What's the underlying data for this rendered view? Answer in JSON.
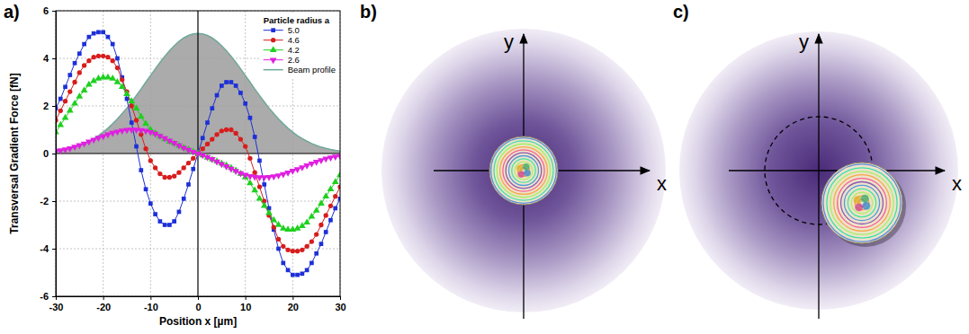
{
  "chart_data": {
    "type": "line",
    "panel_label": "a)",
    "x_label": "Position x [µm]",
    "y_label": "Transversal Gradient Force [fN]",
    "legend_title": "Particle radius a",
    "legend": "top-right",
    "grid": true,
    "xlim": [
      -30,
      30
    ],
    "xticks": [
      -30,
      -20,
      -10,
      0,
      10,
      20,
      30
    ],
    "ylim": [
      -6,
      6
    ],
    "yticks": [
      -6,
      -4,
      -2,
      0,
      2,
      4,
      6
    ],
    "x": [
      -30,
      -29,
      -28,
      -27,
      -26,
      -25,
      -24,
      -23,
      -22,
      -21,
      -20,
      -19,
      -18,
      -17,
      -16,
      -15,
      -14,
      -13,
      -12,
      -11,
      -10,
      -9,
      -8,
      -7,
      -6,
      -5,
      -4,
      -3,
      -2,
      -1,
      0,
      1,
      2,
      3,
      4,
      5,
      6,
      7,
      8,
      9,
      10,
      11,
      12,
      13,
      14,
      15,
      16,
      17,
      18,
      19,
      20,
      21,
      22,
      23,
      24,
      25,
      26,
      27,
      28,
      29,
      30
    ],
    "series": [
      {
        "name": "5.0",
        "color": "#1c2fd8",
        "marker": "square",
        "values": [
          1.9,
          2.3,
          2.8,
          3.3,
          3.8,
          4.2,
          4.6,
          4.9,
          5.05,
          5.1,
          5.1,
          4.9,
          4.6,
          4.0,
          3.2,
          2.3,
          1.3,
          0.3,
          -0.7,
          -1.5,
          -2.1,
          -2.55,
          -2.85,
          -3.0,
          -3.0,
          -2.85,
          -2.45,
          -1.9,
          -1.3,
          -0.65,
          0,
          0.65,
          1.3,
          1.9,
          2.45,
          2.85,
          3.0,
          3.0,
          2.85,
          2.55,
          2.1,
          1.5,
          0.7,
          -0.3,
          -1.3,
          -2.3,
          -3.2,
          -4.0,
          -4.6,
          -4.9,
          -5.1,
          -5.1,
          -5.05,
          -4.9,
          -4.6,
          -4.2,
          -3.8,
          -3.3,
          -2.8,
          -2.3,
          -1.9
        ]
      },
      {
        "name": "4.6",
        "color": "#d81c1c",
        "marker": "circle",
        "values": [
          1.4,
          1.8,
          2.2,
          2.6,
          3.0,
          3.4,
          3.7,
          3.9,
          4.05,
          4.1,
          4.1,
          4.05,
          3.9,
          3.6,
          3.1,
          2.6,
          2.0,
          1.4,
          0.8,
          0.2,
          -0.3,
          -0.6,
          -0.85,
          -1.0,
          -1.0,
          -0.95,
          -0.8,
          -0.6,
          -0.4,
          -0.2,
          0,
          0.2,
          0.4,
          0.6,
          0.8,
          0.95,
          1.0,
          1.0,
          0.85,
          0.6,
          0.3,
          -0.2,
          -0.8,
          -1.4,
          -2.0,
          -2.6,
          -3.1,
          -3.6,
          -3.9,
          -4.05,
          -4.1,
          -4.1,
          -4.05,
          -3.9,
          -3.7,
          -3.4,
          -3.0,
          -2.6,
          -2.2,
          -1.8,
          -1.4
        ]
      },
      {
        "name": "4.2",
        "color": "#1fd01f",
        "marker": "triangle-up",
        "values": [
          0.9,
          1.2,
          1.5,
          1.8,
          2.1,
          2.4,
          2.65,
          2.9,
          3.05,
          3.15,
          3.2,
          3.2,
          3.15,
          3.0,
          2.8,
          2.5,
          2.2,
          1.9,
          1.55,
          1.25,
          1.0,
          0.85,
          0.72,
          0.6,
          0.5,
          0.42,
          0.33,
          0.25,
          0.17,
          0.08,
          0,
          -0.08,
          -0.17,
          -0.25,
          -0.33,
          -0.42,
          -0.5,
          -0.6,
          -0.72,
          -0.85,
          -1.0,
          -1.25,
          -1.55,
          -1.9,
          -2.2,
          -2.5,
          -2.8,
          -3.0,
          -3.15,
          -3.2,
          -3.2,
          -3.15,
          -3.05,
          -2.9,
          -2.65,
          -2.4,
          -2.1,
          -1.8,
          -1.5,
          -1.2,
          -0.9
        ]
      },
      {
        "name": "2.6",
        "color": "#e01fe0",
        "marker": "triangle-down",
        "values": [
          0.1,
          0.13,
          0.17,
          0.22,
          0.28,
          0.35,
          0.42,
          0.5,
          0.58,
          0.66,
          0.73,
          0.8,
          0.87,
          0.92,
          0.96,
          0.99,
          1.0,
          1.0,
          0.98,
          0.95,
          0.9,
          0.83,
          0.74,
          0.64,
          0.54,
          0.44,
          0.34,
          0.24,
          0.15,
          0.07,
          0,
          -0.07,
          -0.15,
          -0.24,
          -0.34,
          -0.44,
          -0.54,
          -0.64,
          -0.74,
          -0.83,
          -0.9,
          -0.95,
          -0.98,
          -1.0,
          -1.0,
          -0.99,
          -0.96,
          -0.92,
          -0.87,
          -0.8,
          -0.73,
          -0.66,
          -0.58,
          -0.5,
          -0.42,
          -0.35,
          -0.28,
          -0.22,
          -0.17,
          -0.13,
          -0.1
        ]
      },
      {
        "name": "Beam profile",
        "type": "area",
        "color": "#6fa89a",
        "values": [
          0.1,
          0.13,
          0.17,
          0.22,
          0.27,
          0.34,
          0.42,
          0.52,
          0.63,
          0.75,
          0.9,
          1.06,
          1.25,
          1.45,
          1.68,
          1.91,
          2.17,
          2.44,
          2.71,
          3.0,
          3.28,
          3.56,
          3.83,
          4.09,
          4.32,
          4.53,
          4.71,
          4.86,
          4.96,
          5.03,
          5.05,
          5.03,
          4.96,
          4.86,
          4.71,
          4.53,
          4.32,
          4.09,
          3.83,
          3.56,
          3.28,
          3.0,
          2.71,
          2.44,
          2.17,
          1.91,
          1.68,
          1.45,
          1.25,
          1.06,
          0.9,
          0.75,
          0.63,
          0.52,
          0.42,
          0.34,
          0.27,
          0.22,
          0.17,
          0.13,
          0.1
        ]
      }
    ]
  },
  "diagrams": [
    {
      "panel_label": "b)",
      "x_label": "x",
      "y_label": "y"
    },
    {
      "panel_label": "c)",
      "x_label": "x",
      "y_label": "y"
    }
  ]
}
